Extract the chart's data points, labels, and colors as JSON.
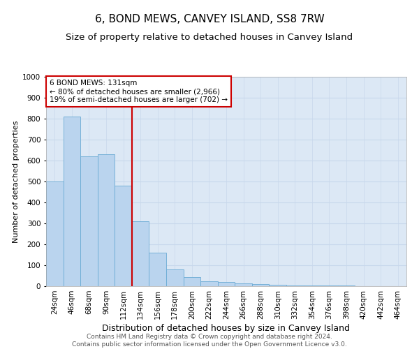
{
  "title": "6, BOND MEWS, CANVEY ISLAND, SS8 7RW",
  "subtitle": "Size of property relative to detached houses in Canvey Island",
  "xlabel": "Distribution of detached houses by size in Canvey Island",
  "ylabel": "Number of detached properties",
  "footer_line1": "Contains HM Land Registry data © Crown copyright and database right 2024.",
  "footer_line2": "Contains public sector information licensed under the Open Government Licence v3.0.",
  "bar_labels": [
    "24sqm",
    "46sqm",
    "68sqm",
    "90sqm",
    "112sqm",
    "134sqm",
    "156sqm",
    "178sqm",
    "200sqm",
    "222sqm",
    "244sqm",
    "266sqm",
    "288sqm",
    "310sqm",
    "332sqm",
    "354sqm",
    "376sqm",
    "398sqm",
    "420sqm",
    "442sqm",
    "464sqm"
  ],
  "bar_values": [
    500,
    810,
    620,
    630,
    480,
    310,
    160,
    80,
    45,
    25,
    20,
    15,
    10,
    7,
    4,
    3,
    2,
    2,
    1,
    1,
    1
  ],
  "bar_color": "#bad4ee",
  "bar_edgecolor": "#6aaad4",
  "vline_color": "#cc0000",
  "annotation_text": "6 BOND MEWS: 131sqm\n← 80% of detached houses are smaller (2,966)\n19% of semi-detached houses are larger (702) →",
  "annotation_box_color": "#ffffff",
  "annotation_box_edgecolor": "#cc0000",
  "ylim": [
    0,
    1000
  ],
  "yticks": [
    0,
    100,
    200,
    300,
    400,
    500,
    600,
    700,
    800,
    900,
    1000
  ],
  "grid_color": "#c8d8ec",
  "plot_bg_color": "#dce8f5",
  "title_fontsize": 11,
  "subtitle_fontsize": 9.5,
  "xlabel_fontsize": 9,
  "ylabel_fontsize": 8,
  "tick_fontsize": 7.5,
  "footer_fontsize": 6.5,
  "annot_fontsize": 7.5
}
